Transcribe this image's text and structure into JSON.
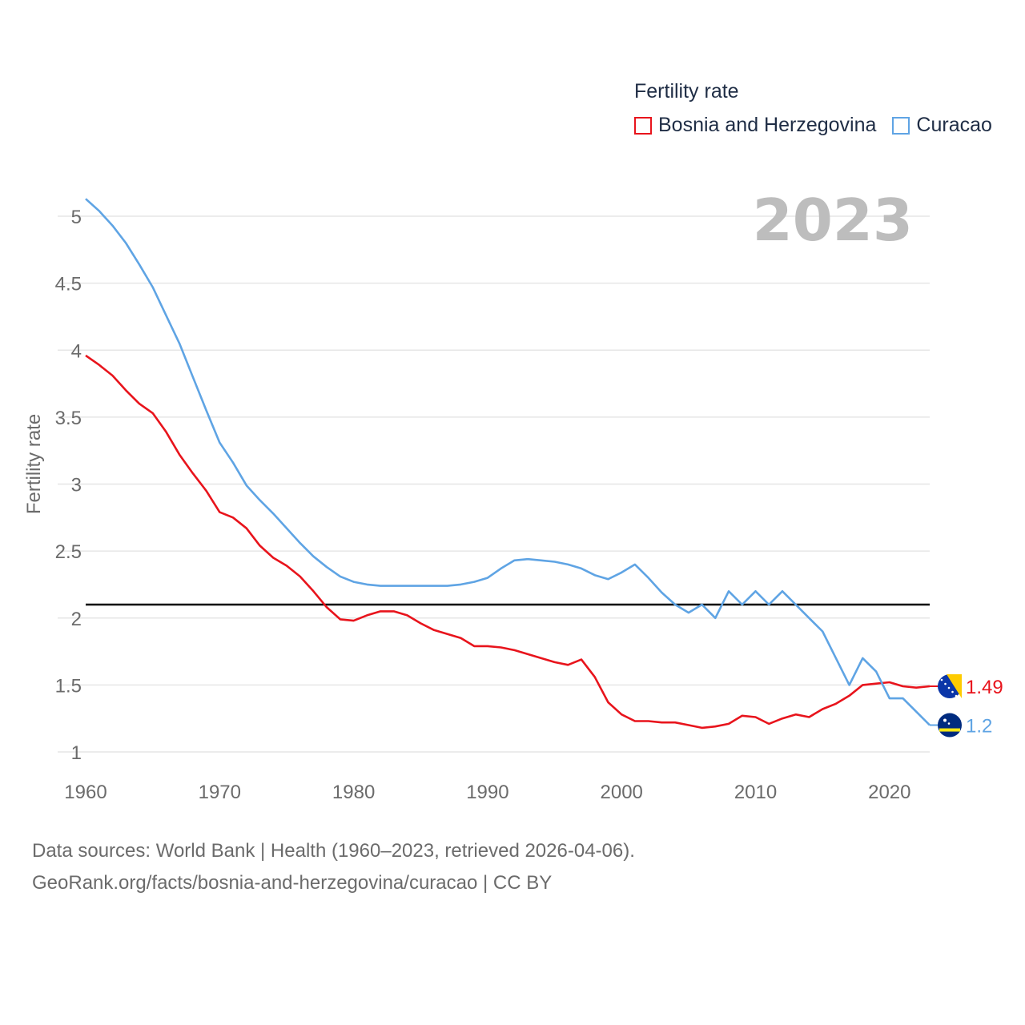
{
  "legend": {
    "title": "Fertility rate",
    "items": [
      {
        "label": "Bosnia and Herzegovina",
        "color": "#e8141c"
      },
      {
        "label": "Curacao",
        "color": "#5fa4e4"
      }
    ]
  },
  "source": {
    "line1": "Data sources: World Bank | Health (1960–2023, retrieved 2026-04-06).",
    "line2": "GeoRank.org/facts/bosnia-and-herzegovina/curacao | CC BY"
  },
  "chart_data": {
    "type": "line",
    "title": "Fertility rate",
    "year_label": "2023",
    "ylabel": "Fertility rate",
    "xlabel": "",
    "xlim": [
      1960,
      2023
    ],
    "ylim": [
      1,
      5
    ],
    "x_ticks": [
      1960,
      1970,
      1980,
      1990,
      2000,
      2010,
      2020
    ],
    "y_ticks": [
      1,
      1.5,
      2,
      2.5,
      3,
      3.5,
      4,
      4.5,
      5
    ],
    "y_tick_labels": [
      "1",
      "1.5",
      "2",
      "2.5",
      "3",
      "3.5",
      "4",
      "4.5",
      "5"
    ],
    "reference_line": 2.1,
    "x": [
      1960,
      1961,
      1962,
      1963,
      1964,
      1965,
      1966,
      1967,
      1968,
      1969,
      1970,
      1971,
      1972,
      1973,
      1974,
      1975,
      1976,
      1977,
      1978,
      1979,
      1980,
      1981,
      1982,
      1983,
      1984,
      1985,
      1986,
      1987,
      1988,
      1989,
      1990,
      1991,
      1992,
      1993,
      1994,
      1995,
      1996,
      1997,
      1998,
      1999,
      2000,
      2001,
      2002,
      2003,
      2004,
      2005,
      2006,
      2007,
      2008,
      2009,
      2010,
      2011,
      2012,
      2013,
      2014,
      2015,
      2016,
      2017,
      2018,
      2019,
      2020,
      2021,
      2022,
      2023
    ],
    "series": [
      {
        "name": "Bosnia and Herzegovina",
        "color": "#e8141c",
        "end_label": "1.49",
        "values": [
          3.96,
          3.89,
          3.81,
          3.7,
          3.6,
          3.53,
          3.39,
          3.22,
          3.08,
          2.95,
          2.79,
          2.75,
          2.67,
          2.54,
          2.45,
          2.39,
          2.31,
          2.2,
          2.08,
          1.99,
          1.98,
          2.02,
          2.05,
          2.05,
          2.02,
          1.96,
          1.91,
          1.88,
          1.85,
          1.79,
          1.79,
          1.78,
          1.76,
          1.73,
          1.7,
          1.67,
          1.65,
          1.69,
          1.56,
          1.37,
          1.28,
          1.23,
          1.23,
          1.22,
          1.22,
          1.2,
          1.18,
          1.19,
          1.21,
          1.27,
          1.26,
          1.21,
          1.25,
          1.28,
          1.26,
          1.32,
          1.36,
          1.42,
          1.5,
          1.51,
          1.52,
          1.49,
          1.48,
          1.49
        ]
      },
      {
        "name": "Curacao",
        "color": "#5fa4e4",
        "end_label": "1.2",
        "values": [
          5.13,
          5.04,
          4.93,
          4.8,
          4.64,
          4.47,
          4.26,
          4.05,
          3.8,
          3.55,
          3.31,
          3.16,
          2.99,
          2.88,
          2.78,
          2.67,
          2.56,
          2.46,
          2.38,
          2.31,
          2.27,
          2.25,
          2.24,
          2.24,
          2.24,
          2.24,
          2.24,
          2.24,
          2.25,
          2.27,
          2.3,
          2.37,
          2.43,
          2.44,
          2.43,
          2.42,
          2.4,
          2.37,
          2.32,
          2.29,
          2.34,
          2.4,
          2.3,
          2.19,
          2.1,
          2.04,
          2.1,
          2.0,
          2.2,
          2.1,
          2.2,
          2.1,
          2.2,
          2.1,
          2.0,
          1.9,
          1.7,
          1.5,
          1.7,
          1.6,
          1.4,
          1.4,
          1.3,
          1.2
        ]
      }
    ]
  }
}
